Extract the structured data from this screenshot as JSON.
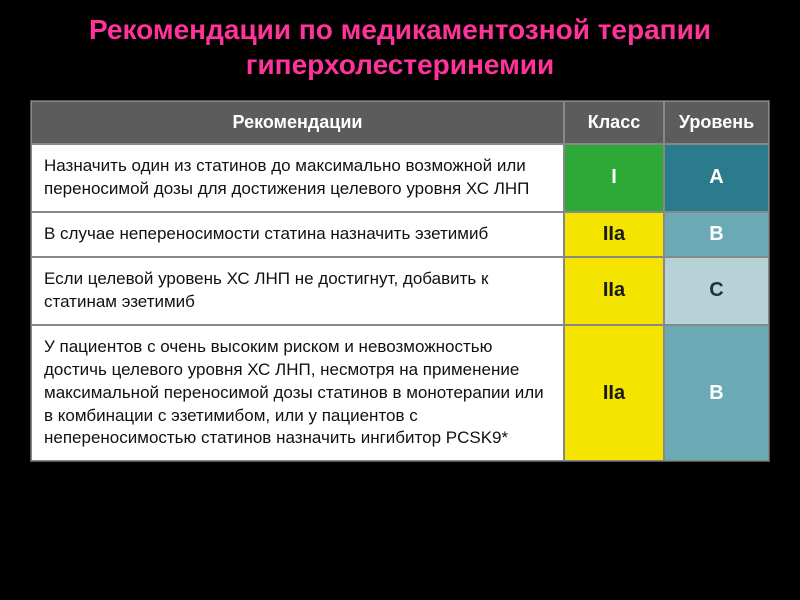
{
  "title": "Рекомендации по медикаментозной терапии гиперхолестеринемии",
  "header": {
    "rec": "Рекомендации",
    "class": "Класс",
    "level": "Уровень"
  },
  "rows": [
    {
      "rec": "Назначить один из статинов до максимально возможной или переносимой дозы для достижения целевого уровня ХС ЛНП",
      "class_label": "I",
      "class_bg": "#2ea836",
      "level_label": "A",
      "level_bg": "#2a7c8c",
      "level_text_dark": false
    },
    {
      "rec": "В случае непереносимости статина назначить эзетимиб",
      "class_label": "IIa",
      "class_bg": "#f5e400",
      "level_label": "B",
      "level_bg": "#6ba9b5",
      "level_text_dark": false
    },
    {
      "rec": "Если целевой уровень ХС ЛНП не достигнут, добавить к статинам эзетимиб",
      "class_label": "IIa",
      "class_bg": "#f5e400",
      "level_label": "C",
      "level_bg": "#b6d2d7",
      "level_text_dark": true
    },
    {
      "rec": "У пациентов с очень высоким риском и невозможностью достичь целевого уровня ХС ЛНП, несмотря на применение максимальной переносимой дозы статинов в монотерапии или в комбинации с эзетимибом, или у пациентов с непереносимостью статинов назначить ингибитор PCSK9*",
      "class_label": "IIa",
      "class_bg": "#f5e400",
      "level_label": "B",
      "level_bg": "#6ba9b5",
      "level_text_dark": false
    }
  ]
}
